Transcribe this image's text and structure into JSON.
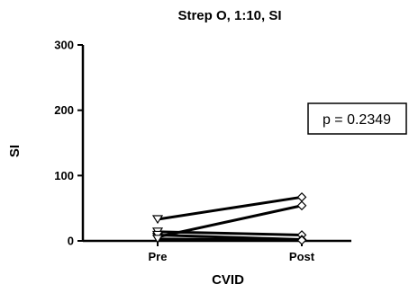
{
  "chart_data": {
    "type": "line",
    "title": "Strep O, 1:10,  SI",
    "xlabel": "CVID",
    "ylabel": "SI",
    "categories": [
      "Pre",
      "Post"
    ],
    "ylim": [
      0,
      300
    ],
    "yticks": [
      0,
      100,
      200,
      300
    ],
    "grid": false,
    "annotation": "p = 0.2349",
    "series": [
      {
        "values": [
          33,
          67
        ]
      },
      {
        "values": [
          6,
          54
        ]
      },
      {
        "values": [
          14,
          9
        ]
      },
      {
        "values": [
          9,
          2
        ]
      },
      {
        "values": [
          3,
          1
        ]
      }
    ],
    "markers": {
      "pre": "triangle-down",
      "post": "diamond"
    }
  }
}
